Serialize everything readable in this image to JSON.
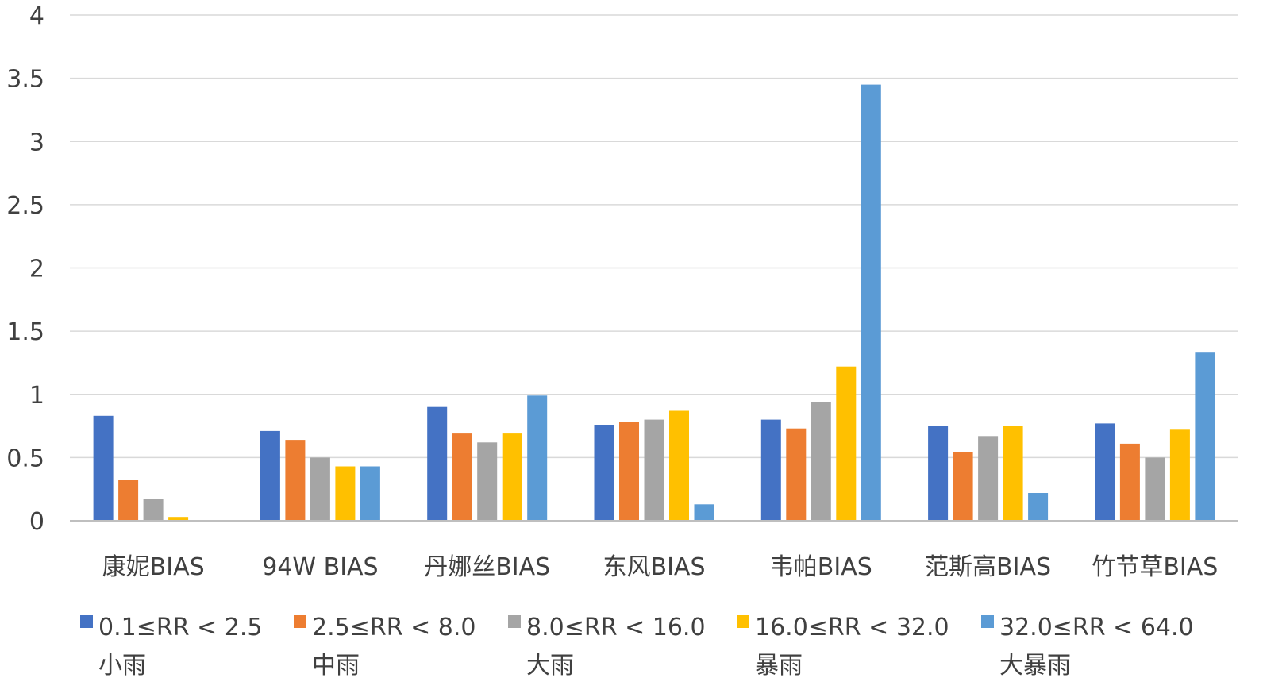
{
  "chart_data": {
    "type": "bar",
    "title": "",
    "xlabel": "",
    "ylabel": "",
    "ylim": [
      0,
      4
    ],
    "yticks": [
      "0",
      "0.5",
      "1",
      "1.5",
      "2",
      "2.5",
      "3",
      "3.5",
      "4"
    ],
    "grid": true,
    "legend_position": "bottom",
    "categories": [
      "康妮BIAS",
      "94W BIAS",
      "丹娜丝BIAS",
      "东风BIAS",
      "韦帕BIAS",
      "范斯高BIAS",
      "竹节草BIAS"
    ],
    "series": [
      {
        "name": "0.1≤RR < 2.5\n小雨",
        "color": "#4472C4",
        "values": [
          0.83,
          0.71,
          0.9,
          0.76,
          0.8,
          0.75,
          0.77
        ]
      },
      {
        "name": "2.5≤RR < 8.0\n中雨",
        "color": "#ED7D31",
        "values": [
          0.32,
          0.64,
          0.69,
          0.78,
          0.73,
          0.54,
          0.61
        ]
      },
      {
        "name": "8.0≤RR < 16.0\n大雨",
        "color": "#A5A5A5",
        "values": [
          0.17,
          0.5,
          0.62,
          0.8,
          0.94,
          0.67,
          0.5
        ]
      },
      {
        "name": "16.0≤RR < 32.0\n暴雨",
        "color": "#FFC000",
        "values": [
          0.03,
          0.43,
          0.69,
          0.87,
          1.22,
          0.75,
          0.72
        ]
      },
      {
        "name": "32.0≤RR < 64.0\n大暴雨",
        "color": "#5B9BD5",
        "values": [
          0.0,
          0.43,
          0.99,
          0.13,
          3.45,
          0.22,
          1.33
        ]
      }
    ]
  }
}
